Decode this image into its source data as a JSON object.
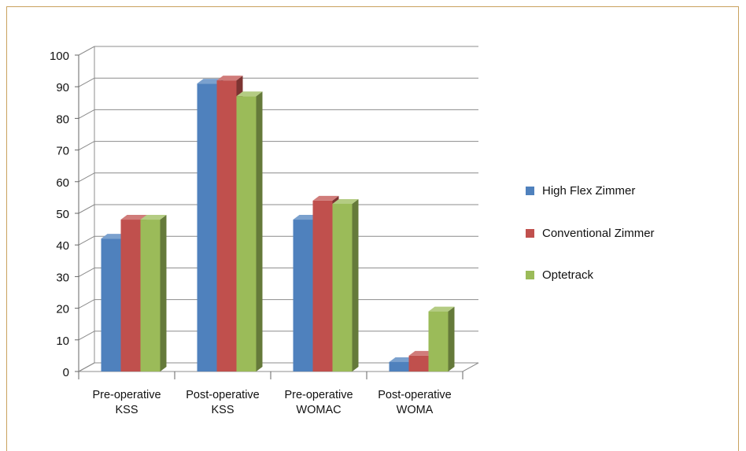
{
  "chart_data": {
    "type": "bar",
    "categories": [
      "Pre-operative KSS",
      "Post-operative KSS",
      "Pre-operative WOMAC",
      "Post-operative WOMA"
    ],
    "category_lines": [
      [
        "Pre-operative",
        "KSS"
      ],
      [
        "Post-operative",
        "KSS"
      ],
      [
        "Pre-operative",
        "WOMAC"
      ],
      [
        "Post-operative",
        "WOMA"
      ]
    ],
    "series": [
      {
        "name": "High Flex Zimmer",
        "values": [
          42,
          91,
          48,
          3
        ],
        "color": "#4f81bd"
      },
      {
        "name": "Conventional Zimmer",
        "values": [
          48,
          92,
          54,
          5
        ],
        "color": "#c0504d"
      },
      {
        "name": "Optetrack",
        "values": [
          48,
          87,
          53,
          19
        ],
        "color": "#9bbb59"
      }
    ],
    "ylim": [
      0,
      100
    ],
    "yticks": [
      "0",
      "10",
      "20",
      "30",
      "40",
      "50",
      "60",
      "70",
      "80",
      "90",
      "100"
    ],
    "grid": true,
    "legend": "right",
    "three_d": true
  }
}
